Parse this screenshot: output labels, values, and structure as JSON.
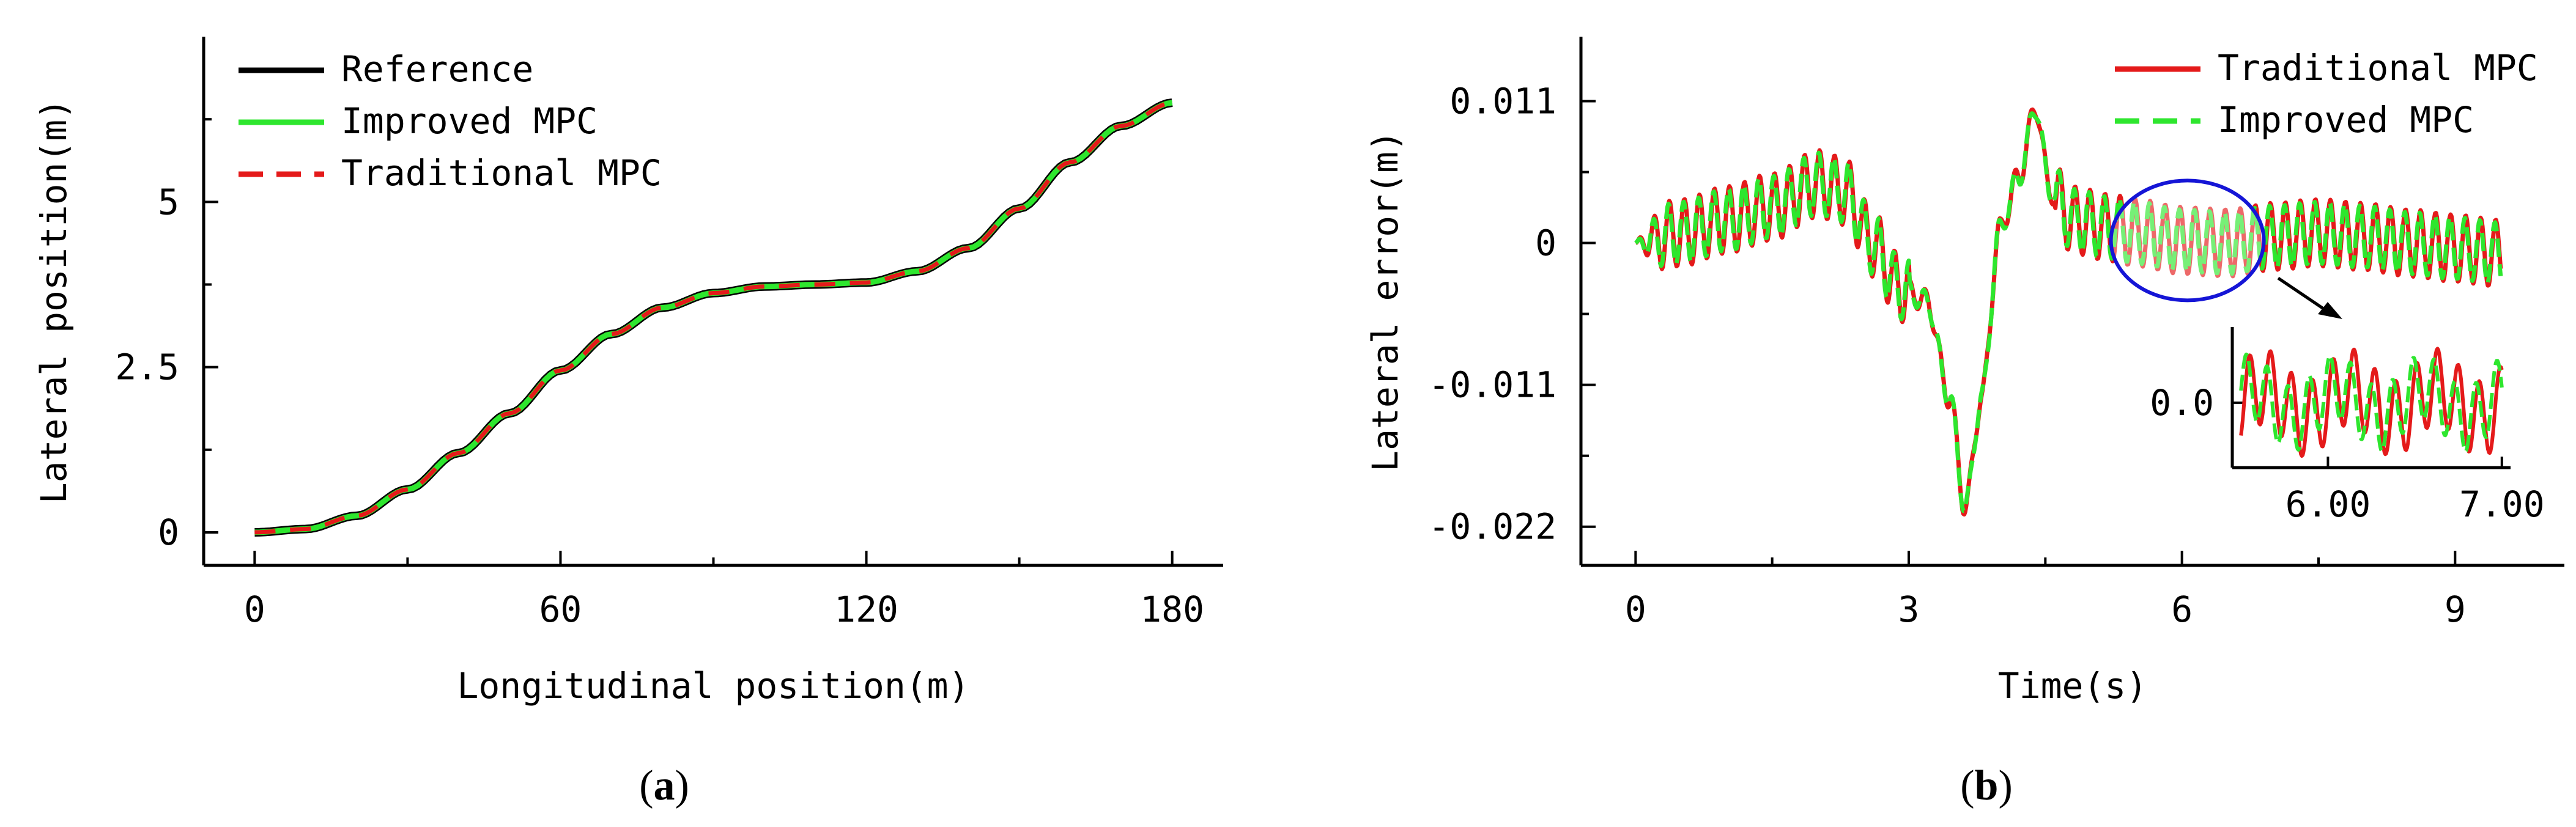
{
  "colors": {
    "axis": "#000000",
    "reference": "#000000",
    "improved": "#2ee62e",
    "traditional": "#e41a1a",
    "ellipse": "#1515d6",
    "highlight": "#ff9999"
  },
  "chart_data": [
    {
      "panel_label_prefix": "(",
      "panel_letter": "a",
      "panel_label_suffix": ")",
      "type": "line",
      "title": "",
      "xlabel": "Longitudinal position(m)",
      "ylabel": "Lateral position(m)",
      "xlim": [
        -10,
        190
      ],
      "ylim": [
        -0.5,
        7.5
      ],
      "xticks": [
        0,
        60,
        120,
        180
      ],
      "xtick_labels": [
        "0",
        "60",
        "120",
        "180"
      ],
      "xminor": [
        30,
        90,
        150
      ],
      "yticks": [
        0,
        2.5,
        5
      ],
      "ytick_labels": [
        "0",
        "2.5",
        "5"
      ],
      "yminor": [
        1.25,
        3.75,
        6.25
      ],
      "legend_position": "top-left",
      "legend": [
        {
          "name": "Reference",
          "style": "solid",
          "color_key": "reference"
        },
        {
          "name": "Improved MPC",
          "style": "solid",
          "color_key": "improved"
        },
        {
          "name": "Traditional MPC",
          "style": "dashed",
          "color_key": "traditional"
        }
      ],
      "series": [
        {
          "name": "Reference",
          "x": [
            0,
            10,
            20,
            30,
            40,
            50,
            60,
            70,
            80,
            90,
            100,
            110,
            120,
            130,
            140,
            150,
            160,
            170,
            180
          ],
          "y": [
            0,
            0.05,
            0.25,
            0.65,
            1.2,
            1.8,
            2.45,
            3.0,
            3.4,
            3.62,
            3.72,
            3.75,
            3.78,
            3.95,
            4.3,
            4.9,
            5.6,
            6.15,
            6.5
          ]
        },
        {
          "name": "Improved MPC",
          "x": [
            0,
            10,
            20,
            30,
            40,
            50,
            60,
            70,
            80,
            90,
            100,
            110,
            120,
            130,
            140,
            150,
            160,
            170,
            180
          ],
          "y": [
            0,
            0.05,
            0.25,
            0.65,
            1.2,
            1.8,
            2.45,
            3.0,
            3.4,
            3.62,
            3.72,
            3.75,
            3.78,
            3.95,
            4.3,
            4.9,
            5.6,
            6.15,
            6.5
          ]
        },
        {
          "name": "Traditional MPC",
          "x": [
            0,
            10,
            20,
            30,
            40,
            50,
            60,
            70,
            80,
            90,
            100,
            110,
            120,
            130,
            140,
            150,
            160,
            170,
            180
          ],
          "y": [
            0,
            0.05,
            0.25,
            0.65,
            1.2,
            1.8,
            2.45,
            3.0,
            3.4,
            3.62,
            3.72,
            3.75,
            3.78,
            3.95,
            4.3,
            4.9,
            5.6,
            6.15,
            6.5
          ]
        }
      ]
    },
    {
      "panel_label_prefix": "(",
      "panel_letter": "b",
      "panel_label_suffix": ")",
      "type": "line",
      "title": "",
      "xlabel": "Time(s)",
      "ylabel": "Lateral error(m)",
      "xlim": [
        -0.6,
        10.2
      ],
      "ylim": [
        -0.025,
        0.016
      ],
      "xticks": [
        0,
        3,
        6,
        9
      ],
      "xtick_labels": [
        "0",
        "3",
        "6",
        "9"
      ],
      "xminor": [
        1.5,
        4.5,
        7.5
      ],
      "yticks": [
        0.011,
        0,
        -0.011,
        -0.022
      ],
      "ytick_labels": [
        "0.011",
        "0",
        "-0.011",
        "-0.022"
      ],
      "yminor": [
        0.0055,
        -0.0055,
        -0.0165
      ],
      "legend_position": "top-right",
      "legend": [
        {
          "name": "Traditional MPC",
          "style": "solid",
          "color_key": "traditional"
        },
        {
          "name": "Improved MPC",
          "style": "dashed",
          "color_key": "improved"
        }
      ],
      "series": [
        {
          "name": "Traditional MPC",
          "t_start": 0,
          "t_end": 9.5,
          "oscillation_amplitude": 0.0026,
          "oscillation_period_s": 0.165,
          "trend_t": [
            0,
            0.5,
            1.0,
            1.5,
            2.0,
            2.3,
            2.6,
            2.9,
            3.2,
            3.45,
            3.62,
            3.8,
            4.0,
            4.2,
            4.4,
            4.55,
            4.8,
            5.2,
            5.5,
            6.0,
            6.5,
            7.0,
            7.5,
            8.0,
            8.5,
            9.0,
            9.5
          ],
          "trend_y": [
            0,
            0.0008,
            0.0018,
            0.0028,
            0.0046,
            0.004,
            0.0,
            -0.0035,
            -0.0045,
            -0.012,
            -0.0205,
            -0.012,
            0.001,
            0.005,
            0.0105,
            0.004,
            0.0018,
            0.0012,
            0.0008,
            0.0002,
            0.0,
            0.0005,
            0.0008,
            0.0005,
            0.0,
            -0.0004,
            -0.0008
          ]
        },
        {
          "name": "Improved MPC",
          "t_start": 0,
          "t_end": 9.5,
          "oscillation_amplitude": 0.0024,
          "oscillation_period_s": 0.165,
          "trend_t": [
            0,
            0.5,
            1.0,
            1.5,
            2.0,
            2.3,
            2.6,
            2.9,
            3.2,
            3.45,
            3.62,
            3.8,
            4.0,
            4.2,
            4.4,
            4.55,
            4.8,
            5.2,
            5.5,
            6.0,
            6.5,
            7.0,
            7.5,
            8.0,
            8.5,
            9.0,
            9.5
          ],
          "trend_y": [
            0,
            0.0008,
            0.0018,
            0.0028,
            0.0046,
            0.004,
            0.0,
            -0.0035,
            -0.0045,
            -0.012,
            -0.0205,
            -0.012,
            0.001,
            0.005,
            0.0105,
            0.004,
            0.0018,
            0.0012,
            0.0008,
            0.0002,
            0.0,
            0.0005,
            0.0008,
            0.0005,
            0.0,
            -0.0004,
            -0.0008
          ]
        }
      ],
      "inset": {
        "xlim": [
          5.45,
          7.05
        ],
        "ylim": [
          -0.006,
          0.007
        ],
        "xticks": [
          6.0,
          7.0
        ],
        "xtick_labels": [
          "6.00",
          "7.00"
        ],
        "yticks": [
          0.0
        ],
        "ytick_labels": [
          "0.0"
        ],
        "zoom_region_t": [
          5.5,
          7.0
        ]
      }
    }
  ]
}
